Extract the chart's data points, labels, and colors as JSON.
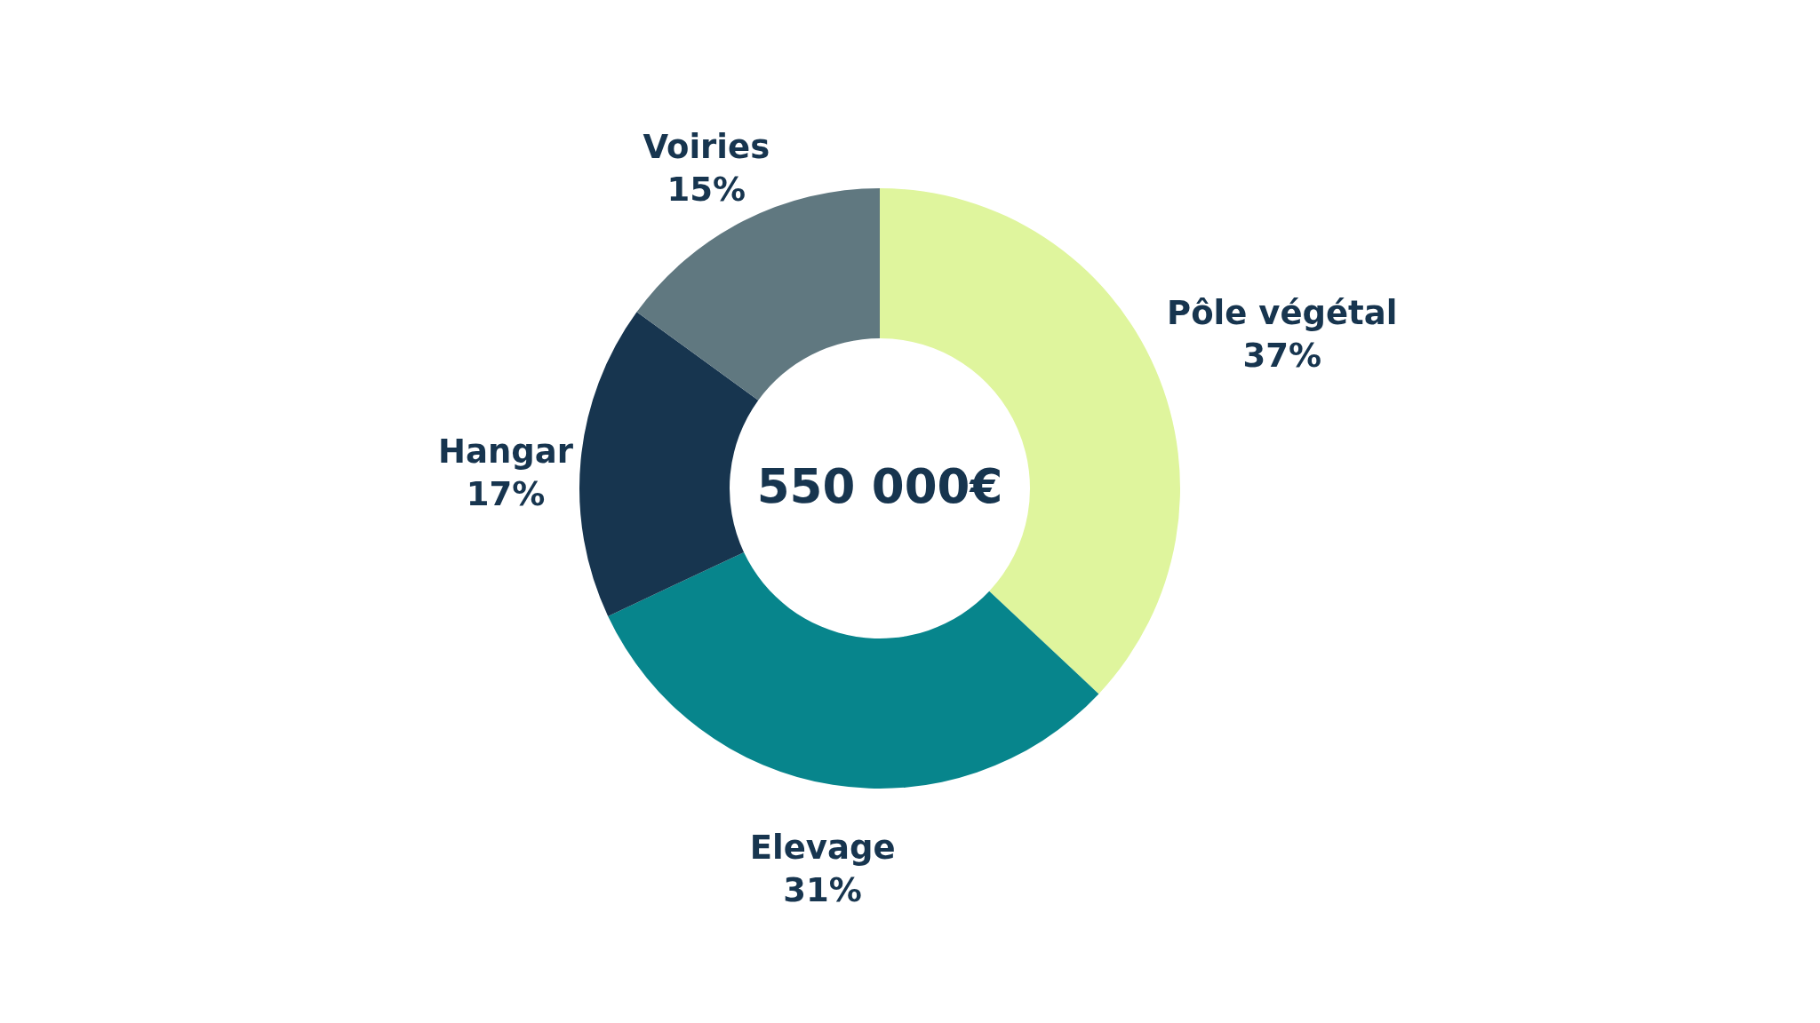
{
  "chart_data": {
    "type": "donut",
    "categories": [
      "Pôle végétal",
      "Elevage",
      "Hangar",
      "Voiries"
    ],
    "values": [
      37,
      31,
      17,
      15
    ],
    "value_labels": [
      "37%",
      "31%",
      "17%",
      "15%"
    ],
    "colors": [
      "#dff59d",
      "#07858c",
      "#17354f",
      "#607880"
    ],
    "annotations": [
      "550 000€"
    ]
  }
}
